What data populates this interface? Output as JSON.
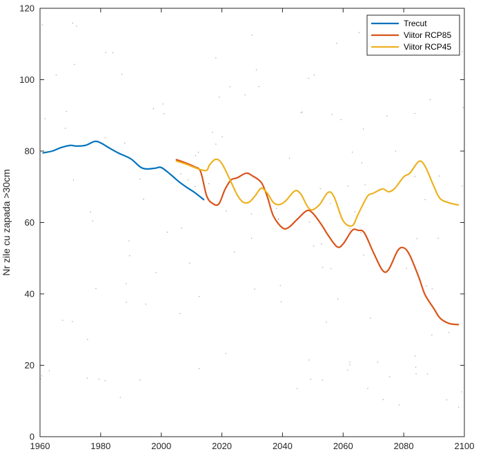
{
  "chart_data": {
    "type": "line",
    "title": "",
    "xlabel": "",
    "ylabel": "Nr zile cu zapada >30cm",
    "xlim": [
      1960,
      2100
    ],
    "ylim": [
      0,
      120
    ],
    "xticks": [
      1960,
      1980,
      2000,
      2020,
      2040,
      2060,
      2080,
      2100
    ],
    "yticks": [
      0,
      20,
      40,
      60,
      80,
      100,
      120
    ],
    "grid": false,
    "legend_position": "top-right",
    "series": [
      {
        "name": "Trecut",
        "color": "#0072BD",
        "x": [
          1961,
          1964,
          1967,
          1970,
          1972,
          1975,
          1978,
          1980,
          1983,
          1986,
          1990,
          1993,
          1995,
          1998,
          2000,
          2003,
          2006,
          2009,
          2011,
          2014
        ],
        "y": [
          79.5,
          80.0,
          81.0,
          81.6,
          81.4,
          81.6,
          82.7,
          82.3,
          80.8,
          79.4,
          77.8,
          75.6,
          75.0,
          75.2,
          75.4,
          73.5,
          71.3,
          69.5,
          68.4,
          66.4
        ]
      },
      {
        "name": "Viitor RCP85",
        "color": "#D95319",
        "x": [
          2005,
          2008,
          2011,
          2013,
          2015,
          2017,
          2019,
          2021,
          2023,
          2025,
          2028,
          2030,
          2033,
          2035,
          2037,
          2040,
          2042,
          2045,
          2048,
          2050,
          2053,
          2055,
          2058,
          2060,
          2063,
          2065,
          2067,
          2070,
          2073,
          2075,
          2078,
          2080,
          2082,
          2085,
          2087,
          2090,
          2092,
          2095,
          2098
        ],
        "y": [
          77.6,
          76.7,
          75.6,
          74.2,
          67.4,
          65.3,
          65.2,
          69.2,
          71.9,
          72.5,
          73.8,
          73.1,
          71.2,
          67.2,
          61.8,
          58.5,
          58.6,
          61.0,
          63.3,
          62.6,
          59.2,
          56.5,
          53.2,
          54.0,
          57.8,
          57.8,
          57.1,
          51.6,
          46.6,
          46.8,
          52.1,
          52.9,
          50.8,
          44.6,
          39.8,
          35.8,
          33.2,
          31.7,
          31.4
        ]
      },
      {
        "name": "Viitor RCP45",
        "color": "#EDB120",
        "x": [
          2005,
          2008,
          2011,
          2013,
          2015,
          2016,
          2018,
          2020,
          2023,
          2025,
          2027,
          2029,
          2031,
          2033,
          2035,
          2037,
          2039,
          2041,
          2044,
          2046,
          2049,
          2052,
          2055,
          2057,
          2060,
          2063,
          2065,
          2068,
          2070,
          2073,
          2075,
          2077,
          2080,
          2082,
          2085,
          2087,
          2090,
          2092,
          2095,
          2098
        ],
        "y": [
          77.2,
          76.4,
          75.4,
          74.8,
          74.6,
          76.2,
          77.7,
          76.5,
          71.4,
          67.8,
          65.7,
          65.7,
          67.5,
          69.6,
          68.2,
          65.6,
          65.0,
          66.0,
          68.8,
          68.0,
          63.7,
          64.8,
          68.4,
          67.2,
          60.5,
          59.1,
          62.4,
          67.3,
          68.2,
          69.4,
          68.6,
          69.5,
          72.8,
          73.8,
          77.1,
          75.8,
          70.0,
          66.7,
          65.5,
          64.9
        ]
      }
    ]
  }
}
